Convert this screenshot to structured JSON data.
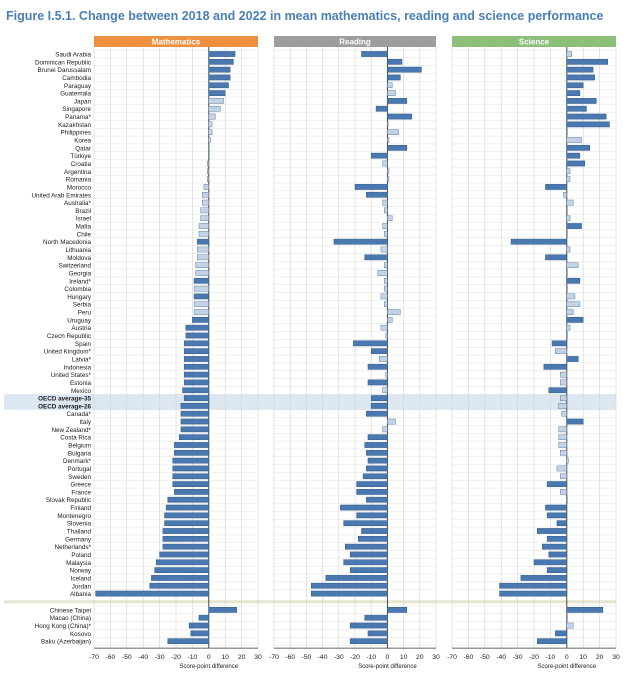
{
  "title": "Figure I.5.1. Change between 2018 and 2022 in mean mathematics, reading and science performance",
  "colors": {
    "math_header": "#f0903f",
    "reading_header": "#9d9d9d",
    "science_header": "#8bbf7a",
    "bar_significant": "#4a78b0",
    "bar_not_significant": "#c3d3e5",
    "bar_stroke": "#2f5a86",
    "oecd_band": "#dce7f2",
    "grid": "#d4d4d4",
    "title": "#4a7fb5"
  },
  "chart_data": {
    "type": "bar",
    "orientation": "horizontal",
    "panels": [
      "Mathematics",
      "Reading",
      "Science"
    ],
    "x_ticks": [
      -70,
      -60,
      -50,
      -40,
      -30,
      -20,
      -10,
      0,
      10,
      20,
      30
    ],
    "xlim": [
      -70,
      30
    ],
    "xlabel": "Score-point difference",
    "grid": true,
    "highlight_rows": [
      "OECD average-35",
      "OECD average-26"
    ],
    "separator_after": "Albania",
    "countries": [
      "Saudi Arabia",
      "Dominican Republic",
      "Brunei Darussalam",
      "Cambodia",
      "Paraguay",
      "Guatemala",
      "Japan",
      "Singapore",
      "Panama*",
      "Kazakhstan",
      "Philippines",
      "Korea",
      "Qatar",
      "Türkiye",
      "Croatia",
      "Argentina",
      "Romania",
      "Morocco",
      "United Arab Emirates",
      "Australia*",
      "Brazil",
      "Israel",
      "Malta",
      "Chile",
      "North Macedonia",
      "Lithuania",
      "Moldova",
      "Switzerland",
      "Georgia",
      "Ireland*",
      "Colombia",
      "Hungary",
      "Serbia",
      "Peru",
      "Uruguay",
      "Austria",
      "Czech Republic",
      "Spain",
      "United Kingdom*",
      "Latvia*",
      "Indonesia",
      "United States*",
      "Estonia",
      "Mexico",
      "OECD average-35",
      "OECD average-26",
      "Canada*",
      "Italy",
      "New Zealand*",
      "Costa Rica",
      "Belgium",
      "Bulgaria",
      "Denmark*",
      "Portugal",
      "Sweden",
      "Greece",
      "France",
      "Slovak Republic",
      "Finland",
      "Montenegro",
      "Slovenia",
      "Thailand",
      "Germany",
      "Netherlands*",
      "Poland",
      "Malaysia",
      "Norway",
      "Iceland",
      "Jordan",
      "Albania",
      "Chinese Taipei",
      "Macao (China)",
      "Hong Kong (China)*",
      "Kosovo",
      "Baku (Azerbaijan)"
    ],
    "series": [
      {
        "name": "Mathematics",
        "values": [
          16,
          15,
          13,
          13,
          12,
          10,
          9,
          7,
          4,
          2,
          2,
          1,
          0,
          0,
          -1,
          -1,
          -1,
          -3,
          -4,
          -4,
          -5,
          -5,
          -6,
          -6,
          -7,
          -7,
          -7,
          -8,
          -8,
          -9,
          -9,
          -9,
          -9,
          -9,
          -10,
          -14,
          -14,
          -15,
          -15,
          -15,
          -15,
          -15,
          -15,
          -16,
          -15,
          -17,
          -17,
          -17,
          -17,
          -18,
          -21,
          -21,
          -22,
          -22,
          -22,
          -22,
          -21,
          -25,
          -26,
          -27,
          -27,
          -28,
          -28,
          -28,
          -30,
          -32,
          -33,
          -35,
          -36,
          -69,
          17,
          -6,
          -12,
          -11,
          -25
        ],
        "significant": [
          1,
          1,
          1,
          1,
          1,
          1,
          0,
          0,
          0,
          0,
          0,
          0,
          0,
          0,
          0,
          0,
          0,
          0,
          0,
          0,
          0,
          0,
          0,
          0,
          1,
          0,
          0,
          0,
          0,
          1,
          0,
          1,
          0,
          0,
          1,
          1,
          1,
          1,
          1,
          1,
          1,
          1,
          1,
          1,
          1,
          1,
          1,
          1,
          1,
          1,
          1,
          1,
          1,
          1,
          1,
          1,
          1,
          1,
          1,
          1,
          1,
          1,
          1,
          1,
          1,
          1,
          1,
          1,
          1,
          1,
          1,
          1,
          1,
          1,
          1
        ]
      },
      {
        "name": "Reading",
        "values": [
          -16,
          9,
          21,
          8,
          3,
          5,
          12,
          -7,
          15,
          0,
          7,
          1,
          12,
          -10,
          -3,
          1,
          1,
          -20,
          -13,
          -3,
          -2,
          3,
          -3,
          -2,
          -33,
          -4,
          -14,
          -2,
          -6,
          -2,
          -2,
          -4,
          -2,
          8,
          3,
          -4,
          -1,
          -21,
          -10,
          -5,
          -12,
          -1,
          -12,
          -3,
          -10,
          -10,
          -13,
          5,
          -3,
          -12,
          -14,
          -13,
          -12,
          -13,
          -15,
          -19,
          -19,
          -13,
          -29,
          -19,
          -27,
          -16,
          -18,
          -26,
          -23,
          -27,
          -23,
          -38,
          -47,
          -47,
          12,
          -14,
          -23,
          -12,
          -23
        ],
        "significant": [
          1,
          1,
          1,
          1,
          0,
          0,
          1,
          1,
          1,
          0,
          0,
          0,
          1,
          1,
          0,
          0,
          0,
          1,
          1,
          0,
          0,
          0,
          0,
          0,
          1,
          0,
          1,
          0,
          0,
          0,
          0,
          0,
          0,
          0,
          0,
          0,
          0,
          1,
          1,
          0,
          1,
          0,
          1,
          0,
          1,
          1,
          1,
          0,
          0,
          1,
          1,
          1,
          1,
          1,
          1,
          1,
          1,
          1,
          1,
          1,
          1,
          1,
          1,
          1,
          1,
          1,
          1,
          1,
          1,
          1,
          1,
          1,
          1,
          1,
          1
        ]
      },
      {
        "name": "Science",
        "values": [
          3,
          25,
          16,
          17,
          10,
          8,
          18,
          12,
          24,
          26,
          0,
          9,
          14,
          8,
          11,
          2,
          2,
          -13,
          -2,
          4,
          0,
          2,
          9,
          0,
          -34,
          2,
          -13,
          7,
          0,
          8,
          0,
          5,
          8,
          4,
          10,
          2,
          0,
          -9,
          -7,
          7,
          -14,
          -4,
          -4,
          -11,
          -4,
          -5,
          -3,
          10,
          -5,
          -5,
          -5,
          -4,
          1,
          -6,
          -4,
          -12,
          -4,
          0,
          -13,
          -12,
          -6,
          -18,
          -12,
          -15,
          -11,
          -20,
          -12,
          -28,
          -41,
          -41,
          22,
          0,
          4,
          -7,
          -18
        ],
        "significant": [
          0,
          1,
          1,
          1,
          1,
          1,
          1,
          1,
          1,
          1,
          0,
          0,
          1,
          1,
          1,
          0,
          0,
          1,
          0,
          0,
          0,
          0,
          1,
          0,
          1,
          0,
          1,
          0,
          0,
          1,
          0,
          0,
          0,
          0,
          1,
          0,
          0,
          1,
          0,
          1,
          1,
          0,
          0,
          1,
          0,
          0,
          0,
          1,
          0,
          0,
          0,
          0,
          0,
          0,
          0,
          1,
          0,
          0,
          1,
          1,
          1,
          1,
          1,
          1,
          1,
          1,
          1,
          1,
          1,
          1,
          1,
          0,
          0,
          1,
          1
        ]
      }
    ]
  }
}
